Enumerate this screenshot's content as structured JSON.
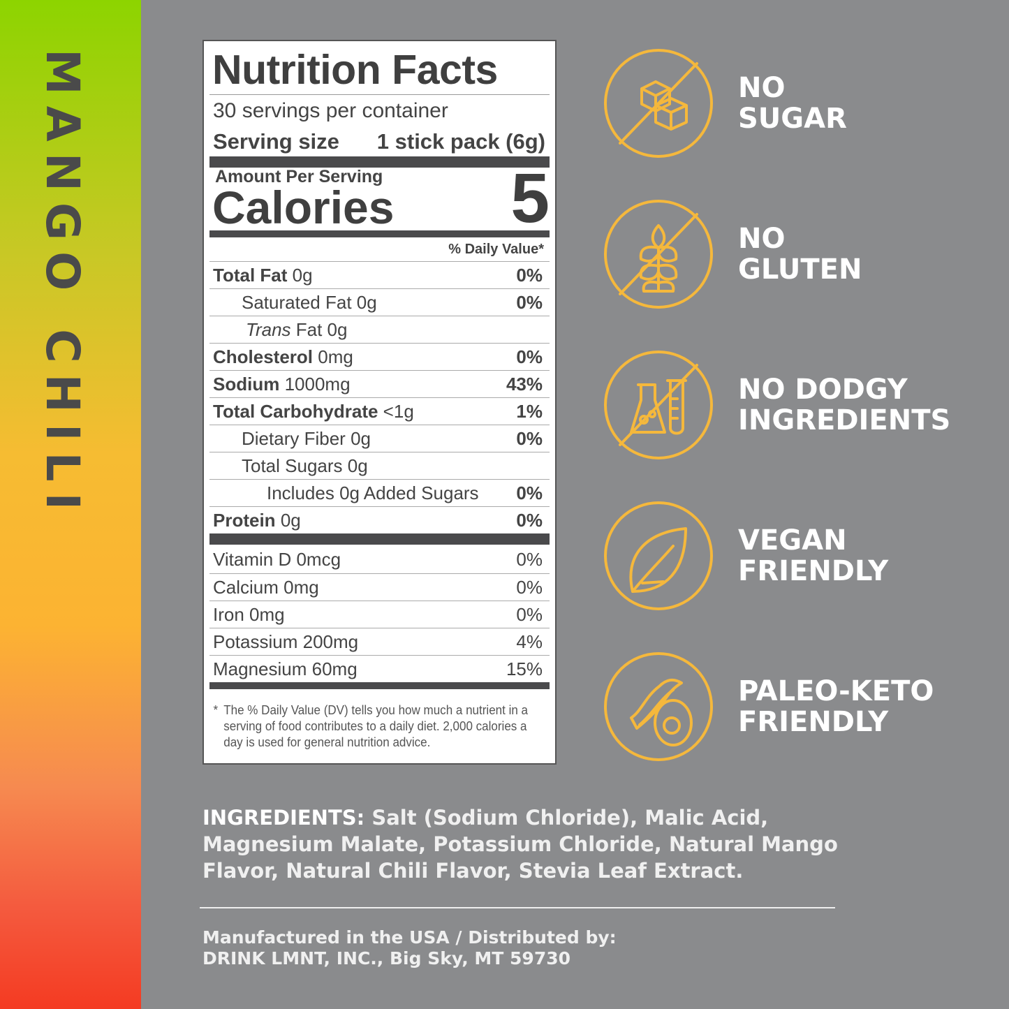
{
  "flavor": "MANGO CHILI",
  "colors": {
    "background": "#8a8b8d",
    "icon": "#f5b83c",
    "stripe_top": "#8dd400",
    "stripe_bottom": "#f43b22"
  },
  "label": {
    "title": "Nutrition Facts",
    "servings": "30 servings per container",
    "serving_size_label": "Serving size",
    "serving_size_value": "1 stick pack (6g)",
    "amount_per_serving": "Amount Per Serving",
    "calories_label": "Calories",
    "calories_value": "5",
    "daily_value_header": "% Daily Value*",
    "nutrients": [
      {
        "name": "Total Fat",
        "amount": "0g",
        "dv": "0%",
        "bold": true,
        "indent": 0
      },
      {
        "name": "Saturated Fat",
        "amount": "0g",
        "dv": "0%",
        "bold": false,
        "indent": 1
      },
      {
        "name": "Trans",
        "amount": "Fat 0g",
        "dv": "",
        "bold": false,
        "indent": 1,
        "italic": true
      },
      {
        "name": "Cholesterol",
        "amount": "0mg",
        "dv": "0%",
        "bold": true,
        "indent": 0
      },
      {
        "name": "Sodium",
        "amount": "1000mg",
        "dv": "43%",
        "bold": true,
        "indent": 0
      },
      {
        "name": "Total Carbohydrate",
        "amount": "<1g",
        "dv": "1%",
        "bold": true,
        "indent": 0
      },
      {
        "name": "Dietary Fiber",
        "amount": "0g",
        "dv": "0%",
        "bold": false,
        "indent": 1
      },
      {
        "name": "Total Sugars",
        "amount": "0g",
        "dv": "",
        "bold": false,
        "indent": 1
      },
      {
        "name": "Includes 0g Added Sugars",
        "amount": "",
        "dv": "0%",
        "bold": false,
        "indent": 2
      },
      {
        "name": "Protein",
        "amount": "0g",
        "dv": "0%",
        "bold": true,
        "indent": 0
      }
    ],
    "vitamins": [
      {
        "name": "Vitamin D 0mcg",
        "dv": "0%"
      },
      {
        "name": "Calcium 0mg",
        "dv": "0%"
      },
      {
        "name": "Iron 0mg",
        "dv": "0%"
      },
      {
        "name": "Potassium 200mg",
        "dv": "4%"
      },
      {
        "name": "Magnesium 60mg",
        "dv": "15%"
      }
    ],
    "footnote_star": "*",
    "footnote": "The % Daily Value (DV) tells you how much a nutrient in a serving of food contributes to a daily diet. 2,000 calories a day is used for general nutrition advice."
  },
  "claims": [
    {
      "line1": "NO",
      "line2": "SUGAR",
      "icon": "no-sugar-cubes-icon"
    },
    {
      "line1": "NO",
      "line2": "GLUTEN",
      "icon": "no-wheat-icon"
    },
    {
      "line1": "NO DODGY",
      "line2": "INGREDIENTS",
      "icon": "no-lab-flask-icon"
    },
    {
      "line1": "VEGAN",
      "line2": "FRIENDLY",
      "icon": "leaf-icon"
    },
    {
      "line1": "PALEO-KETO",
      "line2": "FRIENDLY",
      "icon": "bacon-avocado-icon"
    }
  ],
  "ingredients": {
    "heading": "INGREDIENTS:",
    "text": " Salt (Sodium Chloride), Malic Acid, Magnesium Malate, Potassium Chloride, Natural Mango Flavor, Natural Chili Flavor, Stevia Leaf Extract."
  },
  "manufacturer": {
    "line1": "Manufactured in the USA / Distributed by:",
    "line2": "DRINK LMNT, INC., Big Sky, MT 59730"
  }
}
